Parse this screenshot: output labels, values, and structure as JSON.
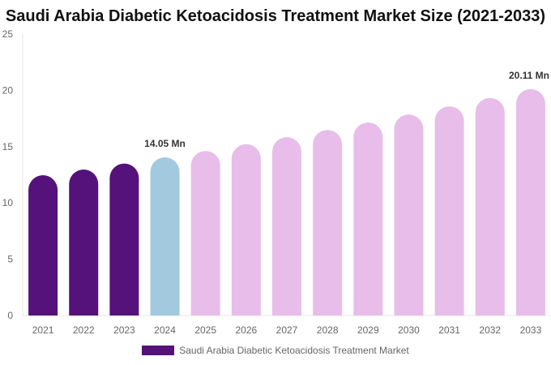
{
  "chart_data": {
    "type": "bar",
    "title": "Saudi Arabia Diabetic Ketoacidosis Treatment Market Size (2021-2033)",
    "categories": [
      "2021",
      "2022",
      "2023",
      "2024",
      "2025",
      "2026",
      "2027",
      "2028",
      "2029",
      "2030",
      "2031",
      "2032",
      "2033"
    ],
    "series": [
      {
        "name": "Saudi Arabia Diabetic Ketoacidosis Treatment Market",
        "values": [
          12.46,
          12.97,
          13.5,
          14.05,
          14.62,
          15.22,
          15.84,
          16.48,
          17.15,
          17.85,
          18.58,
          19.33,
          20.11
        ]
      }
    ],
    "ylim": [
      0,
      25
    ],
    "yticks": [
      0,
      5,
      10,
      15,
      20,
      25
    ],
    "annotations": [
      {
        "category": "2024",
        "text": "14.05 Mn"
      },
      {
        "category": "2033",
        "text": "20.11 Mn"
      }
    ],
    "colors": {
      "historical": "#54127a",
      "current": "#a3c9df",
      "forecast": "#e8bde9"
    },
    "grid": false,
    "legend_position": "bottom"
  }
}
